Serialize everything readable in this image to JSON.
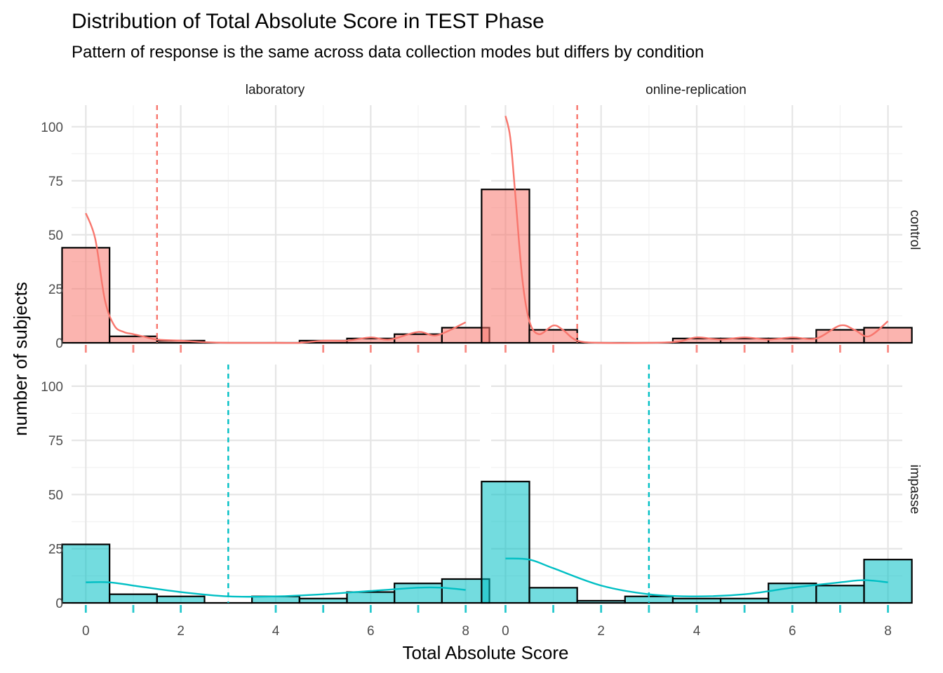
{
  "chart_data": {
    "type": "bar",
    "title": "Distribution of Total Absolute Score in TEST Phase",
    "subtitle": "Pattern of response is the same across data collection modes but differs by condition",
    "xlabel": "Total Absolute Score",
    "ylabel": "number of subjects",
    "xlim": [
      -0.3,
      8.3
    ],
    "ylim": [
      0,
      110
    ],
    "x_ticks": [
      0,
      2,
      4,
      6,
      8
    ],
    "y_ticks": [
      0,
      25,
      50,
      75,
      100
    ],
    "grid": true,
    "facet_columns": [
      "laboratory",
      "online-replication"
    ],
    "facet_rows": [
      "control",
      "impasse"
    ],
    "colors": {
      "control": "#F8766D",
      "impasse": "#00BFC4"
    },
    "panels": [
      {
        "column": "laboratory",
        "row": "control",
        "bins": [
          0,
          1,
          2,
          3,
          4,
          5,
          6,
          7,
          8
        ],
        "counts": [
          44,
          3,
          1,
          0,
          0,
          1,
          2,
          4,
          7
        ],
        "mean": 1.5,
        "density": [
          [
            0,
            60
          ],
          [
            0.2,
            48
          ],
          [
            0.4,
            20
          ],
          [
            0.6,
            8
          ],
          [
            0.8,
            5
          ],
          [
            1.0,
            4
          ],
          [
            1.2,
            3
          ],
          [
            1.5,
            1.5
          ],
          [
            2.0,
            1
          ],
          [
            2.5,
            0.3
          ],
          [
            3.0,
            0
          ],
          [
            4.0,
            0
          ],
          [
            4.5,
            0
          ],
          [
            5.0,
            1
          ],
          [
            5.5,
            1
          ],
          [
            6.0,
            2.5
          ],
          [
            6.4,
            1.5
          ],
          [
            7.0,
            5
          ],
          [
            7.4,
            3.5
          ],
          [
            8.0,
            9.5
          ]
        ],
        "rug": [
          0,
          1,
          2,
          5,
          6,
          7,
          8
        ]
      },
      {
        "column": "online-replication",
        "row": "control",
        "bins": [
          0,
          1,
          2,
          3,
          4,
          5,
          6,
          7,
          8
        ],
        "counts": [
          71,
          6,
          0,
          0,
          2,
          2,
          2,
          6,
          7
        ],
        "mean": 1.5,
        "density": [
          [
            0,
            105
          ],
          [
            0.1,
            95
          ],
          [
            0.2,
            70
          ],
          [
            0.35,
            30
          ],
          [
            0.5,
            10
          ],
          [
            0.7,
            4
          ],
          [
            1.0,
            8
          ],
          [
            1.2,
            6
          ],
          [
            1.5,
            1
          ],
          [
            2.0,
            0
          ],
          [
            3.0,
            0
          ],
          [
            3.6,
            0.5
          ],
          [
            4.0,
            2.5
          ],
          [
            4.5,
            1.5
          ],
          [
            5.0,
            2.5
          ],
          [
            5.5,
            1.5
          ],
          [
            6.0,
            2.5
          ],
          [
            6.5,
            2
          ],
          [
            7.0,
            8
          ],
          [
            7.3,
            6
          ],
          [
            7.6,
            3
          ],
          [
            8.0,
            10
          ]
        ],
        "rug": [
          0,
          1,
          4,
          5,
          6,
          7,
          8
        ]
      },
      {
        "column": "laboratory",
        "row": "impasse",
        "bins": [
          0,
          1,
          2,
          3,
          4,
          5,
          6,
          7,
          8
        ],
        "counts": [
          27,
          4,
          3,
          0,
          3,
          2,
          5,
          9,
          11
        ],
        "mean": 3,
        "density": [
          [
            0,
            9.5
          ],
          [
            0.5,
            9.5
          ],
          [
            1,
            8
          ],
          [
            2,
            5
          ],
          [
            3,
            3
          ],
          [
            4,
            3
          ],
          [
            5,
            4
          ],
          [
            6,
            5.5
          ],
          [
            7,
            7
          ],
          [
            7.5,
            7
          ],
          [
            8,
            6
          ]
        ],
        "rug": [
          0,
          1,
          2,
          4,
          5,
          6,
          7,
          8
        ]
      },
      {
        "column": "online-replication",
        "row": "impasse",
        "bins": [
          0,
          1,
          2,
          3,
          4,
          5,
          6,
          7,
          8
        ],
        "counts": [
          56,
          7,
          1,
          3,
          2,
          2,
          9,
          8,
          20
        ],
        "mean": 3,
        "density": [
          [
            0,
            20.5
          ],
          [
            0.5,
            20
          ],
          [
            1,
            16
          ],
          [
            2,
            8
          ],
          [
            3,
            4
          ],
          [
            4,
            3
          ],
          [
            5,
            4
          ],
          [
            6,
            7
          ],
          [
            7,
            9.5
          ],
          [
            7.5,
            10.5
          ],
          [
            8,
            9.5
          ]
        ],
        "rug": [
          0,
          1,
          2,
          3,
          4,
          5,
          6,
          7,
          8
        ]
      }
    ]
  }
}
